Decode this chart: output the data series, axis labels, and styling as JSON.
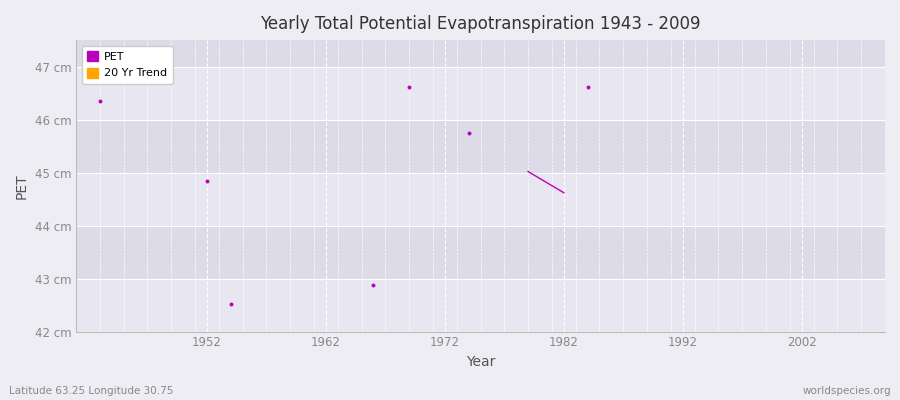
{
  "title": "Yearly Total Potential Evapotranspiration 1943 - 2009",
  "xlabel": "Year",
  "ylabel": "PET",
  "subtitle_left": "Latitude 63.25 Longitude 30.75",
  "subtitle_right": "worldspecies.org",
  "xlim": [
    1941,
    2009
  ],
  "ylim": [
    42.0,
    47.5
  ],
  "yticks": [
    42,
    43,
    44,
    45,
    46,
    47
  ],
  "ytick_labels": [
    "42 cm",
    "43 cm",
    "44 cm",
    "45 cm",
    "46 cm",
    "47 cm"
  ],
  "xticks": [
    1952,
    1962,
    1972,
    1982,
    1992,
    2002
  ],
  "background_color": "#eeedf3",
  "band_colors": [
    "#e8e6f0",
    "#dddbe8"
  ],
  "grid_color": "#ffffff",
  "pet_color": "#bb00bb",
  "trend_color": "#ffa500",
  "pet_points": [
    [
      1943,
      46.35
    ],
    [
      1952,
      44.85
    ],
    [
      1954,
      42.52
    ],
    [
      1966,
      42.88
    ],
    [
      1969,
      46.62
    ],
    [
      1974,
      45.75
    ],
    [
      1984,
      46.62
    ]
  ],
  "trend_line": [
    [
      1979,
      45.02
    ],
    [
      1982,
      44.62
    ]
  ]
}
